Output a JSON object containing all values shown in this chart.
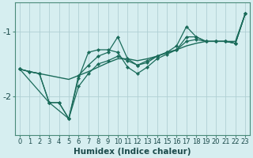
{
  "xlabel": "Humidex (Indice chaleur)",
  "bg_color": "#d6eef0",
  "line_color": "#1a6b5a",
  "grid_color": "#b0d0d4",
  "xlim": [
    -0.5,
    23.5
  ],
  "ylim": [
    -2.6,
    -0.55
  ],
  "yticks": [
    -2,
    -1
  ],
  "xticks": [
    0,
    1,
    2,
    3,
    4,
    5,
    6,
    7,
    8,
    9,
    10,
    11,
    12,
    13,
    14,
    15,
    16,
    17,
    18,
    19,
    20,
    21,
    22,
    23
  ],
  "lines": [
    {
      "x": [
        0,
        1,
        2,
        3,
        4,
        5,
        6,
        7,
        8,
        9,
        10,
        11,
        12,
        13,
        14,
        15,
        16,
        17,
        18,
        19,
        20,
        21,
        22,
        23
      ],
      "y": [
        -1.58,
        -1.62,
        -1.65,
        -1.68,
        -1.71,
        -1.74,
        -1.68,
        -1.62,
        -1.55,
        -1.48,
        -1.42,
        -1.42,
        -1.45,
        -1.42,
        -1.38,
        -1.33,
        -1.28,
        -1.22,
        -1.18,
        -1.15,
        -1.15,
        -1.15,
        -1.15,
        -0.72
      ],
      "marker": false,
      "lw": 1.0
    },
    {
      "x": [
        0,
        1,
        2,
        3,
        4,
        5,
        6,
        7,
        8,
        9,
        10,
        11,
        12,
        13,
        14,
        15,
        16,
        17,
        18,
        19,
        20,
        21,
        22,
        23
      ],
      "y": [
        -1.58,
        -1.62,
        -1.65,
        -2.1,
        -2.1,
        -2.35,
        -1.85,
        -1.65,
        -1.5,
        -1.45,
        -1.38,
        -1.45,
        -1.52,
        -1.45,
        -1.38,
        -1.32,
        -1.28,
        -1.15,
        -1.12,
        -1.15,
        -1.15,
        -1.15,
        -1.18,
        -0.72
      ],
      "marker": true,
      "lw": 0.9
    },
    {
      "x": [
        0,
        3,
        5,
        6,
        7,
        8,
        9,
        10,
        11,
        12,
        13,
        14,
        15,
        16,
        17,
        18,
        19,
        20,
        21,
        22,
        23
      ],
      "y": [
        -1.58,
        -2.1,
        -2.35,
        -1.68,
        -1.52,
        -1.38,
        -1.32,
        -1.08,
        -1.42,
        -1.52,
        -1.48,
        -1.38,
        -1.32,
        -1.22,
        -0.92,
        -1.08,
        -1.15,
        -1.15,
        -1.15,
        -1.18,
        -0.72
      ],
      "marker": true,
      "lw": 0.9
    },
    {
      "x": [
        0,
        1,
        2,
        3,
        4,
        5,
        6,
        7,
        8,
        9,
        10,
        11,
        12,
        13,
        14,
        15,
        16,
        17,
        18,
        19,
        20,
        21,
        22,
        23
      ],
      "y": [
        -1.58,
        -1.62,
        -1.65,
        -2.1,
        -2.1,
        -2.35,
        -1.72,
        -1.32,
        -1.28,
        -1.28,
        -1.32,
        -1.55,
        -1.65,
        -1.55,
        -1.42,
        -1.35,
        -1.28,
        -1.08,
        -1.08,
        -1.15,
        -1.15,
        -1.15,
        -1.18,
        -0.72
      ],
      "marker": true,
      "lw": 0.9
    }
  ]
}
